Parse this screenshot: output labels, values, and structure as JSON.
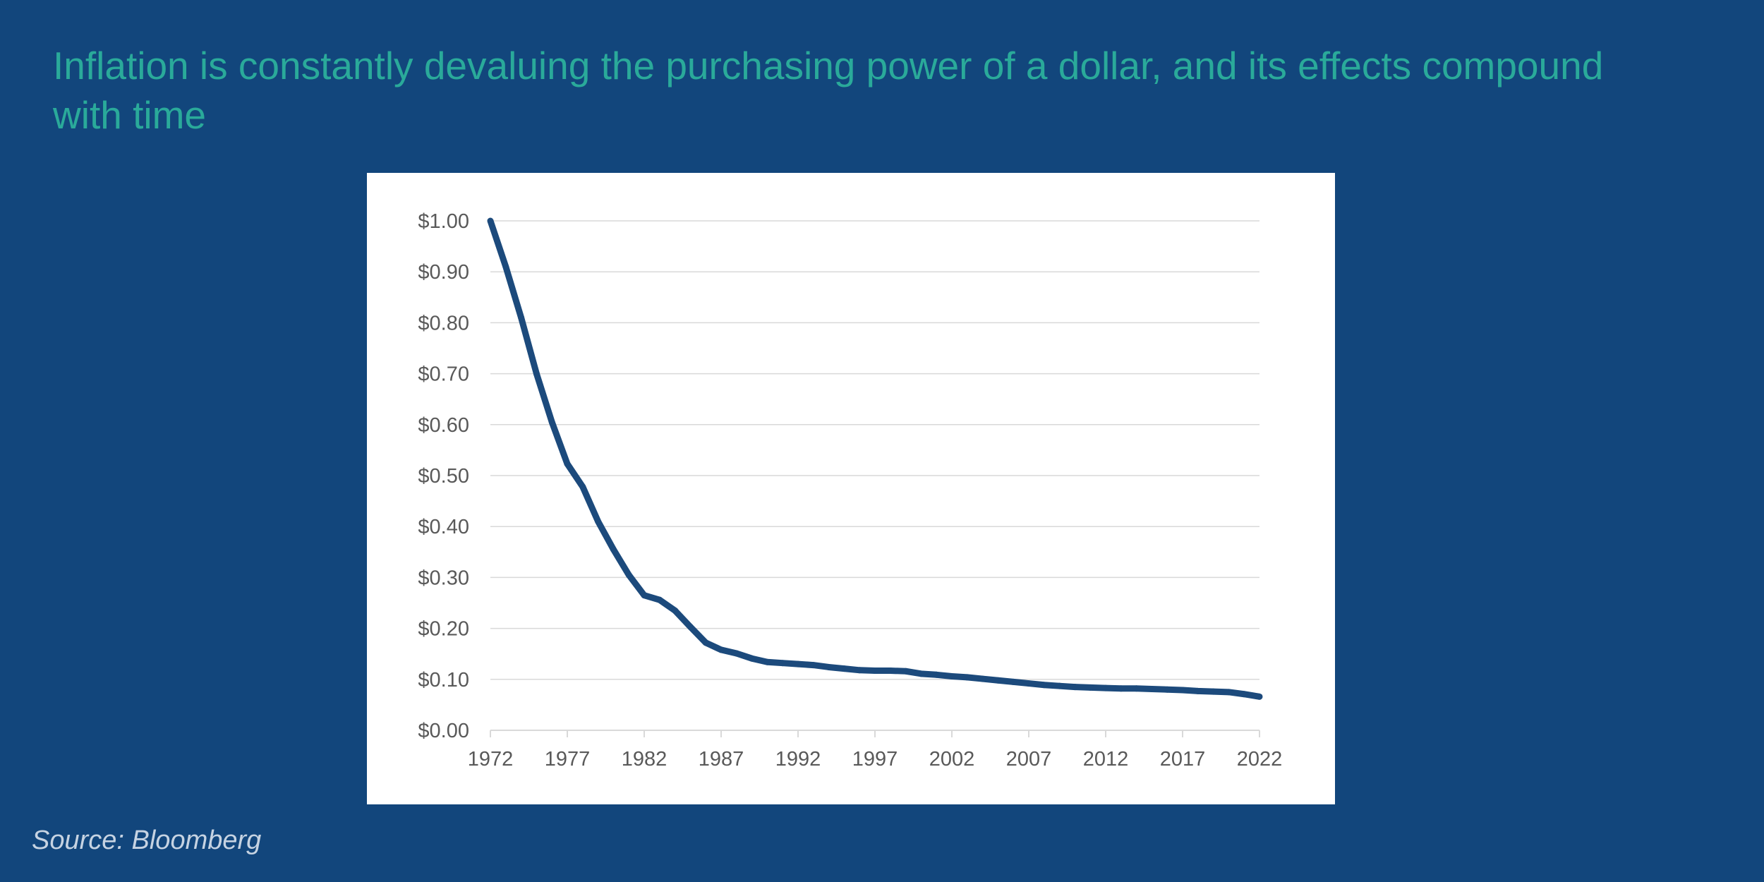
{
  "slide": {
    "headline": "Inflation is constantly devaluing the purchasing power of a dollar, and its effects compound with time",
    "source": "Source: Bloomberg",
    "background_color": "#12467c",
    "headline_color": "#2aaa9a"
  },
  "chart_data": {
    "type": "line",
    "title": "",
    "xlabel": "",
    "ylabel": "",
    "x": [
      1972,
      1973,
      1974,
      1975,
      1976,
      1977,
      1978,
      1979,
      1980,
      1981,
      1982,
      1983,
      1984,
      1985,
      1986,
      1987,
      1988,
      1989,
      1990,
      1991,
      1992,
      1993,
      1994,
      1995,
      1996,
      1997,
      1998,
      1999,
      2000,
      2001,
      2002,
      2003,
      2004,
      2005,
      2006,
      2007,
      2008,
      2009,
      2010,
      2011,
      2012,
      2013,
      2014,
      2015,
      2016,
      2017,
      2018,
      2019,
      2020,
      2021,
      2022
    ],
    "series": [
      {
        "values": [
          1.0,
          0.91,
          0.81,
          0.7,
          0.605,
          0.523,
          0.478,
          0.41,
          0.355,
          0.305,
          0.265,
          0.256,
          0.235,
          0.203,
          0.172,
          0.158,
          0.151,
          0.141,
          0.134,
          0.132,
          0.13,
          0.128,
          0.124,
          0.121,
          0.118,
          0.117,
          0.117,
          0.116,
          0.111,
          0.109,
          0.106,
          0.104,
          0.101,
          0.098,
          0.095,
          0.092,
          0.089,
          0.087,
          0.085,
          0.084,
          0.083,
          0.082,
          0.082,
          0.081,
          0.08,
          0.079,
          0.077,
          0.076,
          0.075,
          0.071,
          0.066
        ],
        "color": "#1c4a7c"
      }
    ],
    "x_ticks": [
      "1972",
      "1977",
      "1982",
      "1987",
      "1992",
      "1997",
      "2002",
      "2007",
      "2012",
      "2017",
      "2022"
    ],
    "y_ticks": [
      "$0.00",
      "$0.10",
      "$0.20",
      "$0.30",
      "$0.40",
      "$0.50",
      "$0.60",
      "$0.70",
      "$0.80",
      "$0.90",
      "$1.00"
    ],
    "xlim": [
      1972,
      2022
    ],
    "ylim": [
      0,
      1
    ],
    "grid": true,
    "legend": "none",
    "gridline_color": "#d9d9d9",
    "tick_label_color": "#595959"
  }
}
